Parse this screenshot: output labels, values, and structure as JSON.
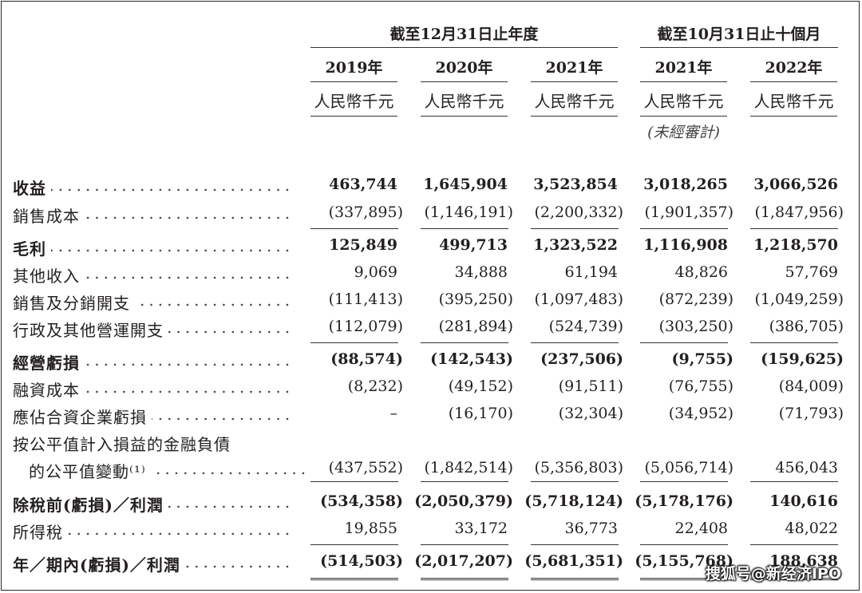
{
  "headers": {
    "group1": "截至12月31日止年度",
    "group2": "截至10月31日止十個月",
    "years": [
      "2019年",
      "2020年",
      "2021年",
      "2021年",
      "2022年"
    ],
    "units": [
      "人民幣千元",
      "人民幣千元",
      "人民幣千元",
      "人民幣千元",
      "人民幣千元"
    ],
    "unaudited": "(未經審計)"
  },
  "rows": [
    {
      "label": "收益",
      "bold": true,
      "values": [
        "463,744",
        "1,645,904",
        "3,523,854",
        "3,018,265",
        "3,066,526"
      ]
    },
    {
      "label": "銷售成本",
      "bold": false,
      "values": [
        "(337,895)",
        "(1,146,191)",
        "(2,200,332)",
        "(1,901,357)",
        "(1,847,956)"
      ]
    },
    {
      "label": "毛利",
      "bold": true,
      "values": [
        "125,849",
        "499,713",
        "1,323,522",
        "1,116,908",
        "1,218,570"
      ]
    },
    {
      "label": "其他收入",
      "bold": false,
      "values": [
        "9,069",
        "34,888",
        "61,194",
        "48,826",
        "57,769"
      ]
    },
    {
      "label": "銷售及分銷開支",
      "bold": false,
      "values": [
        "(111,413)",
        "(395,250)",
        "(1,097,483)",
        "(872,239)",
        "(1,049,259)"
      ]
    },
    {
      "label": "行政及其他營運開支",
      "bold": false,
      "values": [
        "(112,079)",
        "(281,894)",
        "(524,739)",
        "(303,250)",
        "(386,705)"
      ]
    },
    {
      "label": "經營虧損",
      "bold": true,
      "values": [
        "(88,574)",
        "(142,543)",
        "(237,506)",
        "(9,755)",
        "(159,625)"
      ]
    },
    {
      "label": "融資成本",
      "bold": false,
      "values": [
        "(8,232)",
        "(49,152)",
        "(91,511)",
        "(76,755)",
        "(84,009)"
      ]
    },
    {
      "label": "應佔合資企業虧損",
      "bold": false,
      "values": [
        "–",
        "(16,170)",
        "(32,304)",
        "(34,952)",
        "(71,793)"
      ]
    },
    {
      "label": "按公平值計入損益的金融負債",
      "bold": false,
      "values": [
        "",
        "",
        "",
        "",
        ""
      ]
    },
    {
      "label": "的公平值變動⁽¹⁾",
      "bold": false,
      "indent": true,
      "values": [
        "(437,552)",
        "(1,842,514)",
        "(5,356,803)",
        "(5,056,714)",
        "456,043"
      ]
    },
    {
      "label": "除稅前(虧損)／利潤",
      "bold": true,
      "values": [
        "(534,358)",
        "(2,050,379)",
        "(5,718,124)",
        "(5,178,176)",
        "140,616"
      ]
    },
    {
      "label": "所得稅",
      "bold": false,
      "values": [
        "19,855",
        "33,172",
        "36,773",
        "22,408",
        "48,022"
      ]
    },
    {
      "label": "年／期內(虧損)／利潤",
      "bold": true,
      "values": [
        "(514,503)",
        "(2,017,207)",
        "(5,681,351)",
        "(5,155,768)",
        "188,638"
      ]
    }
  ],
  "watermark": "搜狐号@新经济IPO"
}
